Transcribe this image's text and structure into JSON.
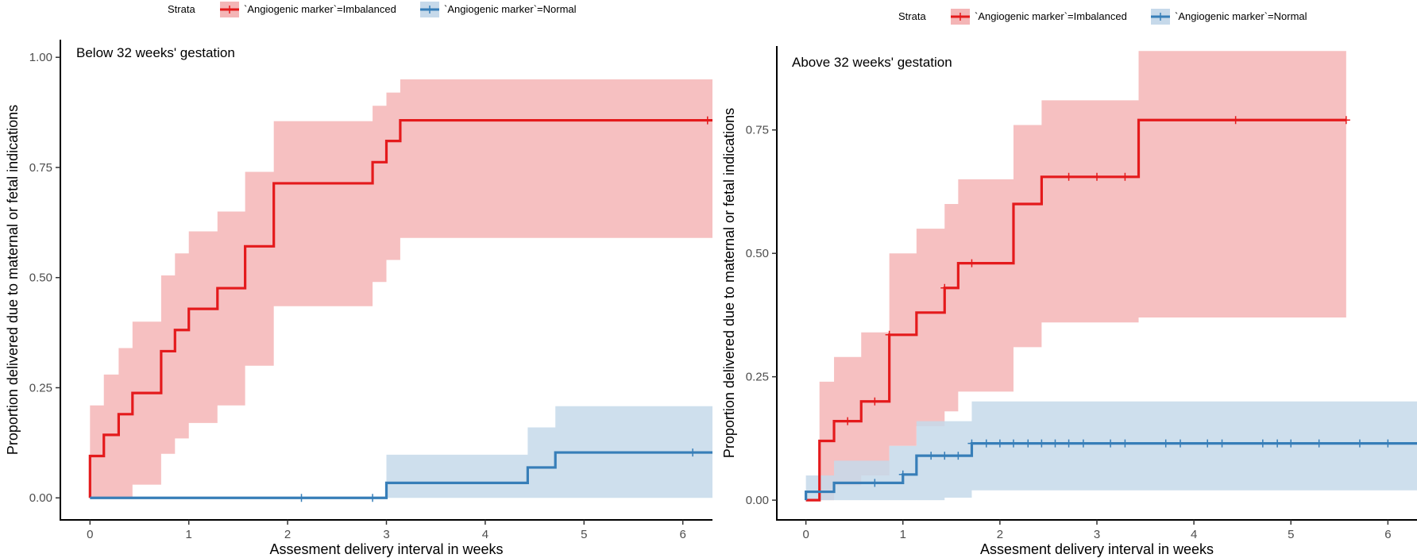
{
  "legend": {
    "title": "Strata",
    "entries": [
      "`Angiogenic marker`=Imbalanced",
      "`Angiogenic marker`=Normal"
    ]
  },
  "colors": {
    "imbalanced": "#e41a1c",
    "imbalanced_band": "#f4b5b6",
    "normal": "#377eb8",
    "normal_band": "#c6d9ea"
  },
  "chart_data": [
    {
      "type": "line",
      "title": "Below 32 weeks' gestation",
      "xlabel": "Assesment delivery interval in weeks",
      "ylabel": "Proportion delivered due to maternal or fetal indications",
      "xlim": [
        -0.3,
        6.3
      ],
      "ylim": [
        -0.05,
        1.04
      ],
      "xticks": [
        0,
        1,
        2,
        3,
        4,
        5,
        6
      ],
      "yticks": [
        0,
        0.25,
        0.5,
        0.75,
        1.0
      ],
      "ytick_labels": [
        "0.00",
        "0.25",
        "0.50",
        "0.75",
        "1.00"
      ],
      "grid": false,
      "legend_position": "top",
      "series": [
        {
          "name": "`Angiogenic marker`=Imbalanced",
          "color": "#e41a1c",
          "steps": [
            [
              0,
              0.095
            ],
            [
              0.14,
              0.143
            ],
            [
              0.29,
              0.19
            ],
            [
              0.43,
              0.238
            ],
            [
              0.72,
              0.333
            ],
            [
              0.86,
              0.381
            ],
            [
              1.0,
              0.429
            ],
            [
              1.29,
              0.476
            ],
            [
              1.57,
              0.571
            ],
            [
              1.86,
              0.714
            ],
            [
              2.86,
              0.762
            ],
            [
              3.0,
              0.81
            ],
            [
              3.14,
              0.857
            ],
            [
              6.3,
              0.857
            ]
          ],
          "ci": [
            [
              0,
              0.0,
              0.21
            ],
            [
              0.14,
              0.0,
              0.28
            ],
            [
              0.29,
              0.0,
              0.34
            ],
            [
              0.43,
              0.03,
              0.4
            ],
            [
              0.72,
              0.1,
              0.505
            ],
            [
              0.86,
              0.135,
              0.555
            ],
            [
              1.0,
              0.17,
              0.605
            ],
            [
              1.29,
              0.21,
              0.65
            ],
            [
              1.57,
              0.3,
              0.74
            ],
            [
              1.86,
              0.435,
              0.855
            ],
            [
              2.86,
              0.49,
              0.89
            ],
            [
              3.0,
              0.54,
              0.92
            ],
            [
              3.14,
              0.59,
              0.95
            ],
            [
              6.3,
              0.59,
              0.95
            ]
          ],
          "censored": [
            [
              6.25,
              0.857
            ]
          ]
        },
        {
          "name": "`Angiogenic marker`=Normal",
          "color": "#377eb8",
          "steps": [
            [
              0,
              0.0
            ],
            [
              3.0,
              0.034
            ],
            [
              4.43,
              0.069
            ],
            [
              4.71,
              0.103
            ],
            [
              6.3,
              0.103
            ]
          ],
          "ci": [
            [
              0,
              0.0,
              0.0
            ],
            [
              3.0,
              0.0,
              0.098
            ],
            [
              4.43,
              0.0,
              0.16
            ],
            [
              4.71,
              0.0,
              0.208
            ],
            [
              6.3,
              0.0,
              0.208
            ]
          ],
          "censored": [
            [
              2.14,
              0.0
            ],
            [
              2.86,
              0.0
            ],
            [
              6.1,
              0.103
            ]
          ]
        }
      ]
    },
    {
      "type": "line",
      "title": "Above 32 weeks' gestation",
      "xlabel": "Assesment delivery interval in weeks",
      "ylabel": "Proportion delivered due to maternal or fetal indications",
      "xlim": [
        -0.3,
        6.3
      ],
      "ylim": [
        -0.04,
        0.92
      ],
      "xticks": [
        0,
        1,
        2,
        3,
        4,
        5,
        6
      ],
      "yticks": [
        0,
        0.25,
        0.5,
        0.75
      ],
      "ytick_labels": [
        "0.00",
        "0.25",
        "0.50",
        "0.75"
      ],
      "grid": false,
      "legend_position": "top",
      "series": [
        {
          "name": "`Angiogenic marker`=Imbalanced",
          "color": "#e41a1c",
          "steps": [
            [
              0,
              0.0
            ],
            [
              0.14,
              0.12
            ],
            [
              0.29,
              0.16
            ],
            [
              0.57,
              0.2
            ],
            [
              0.86,
              0.335
            ],
            [
              1.0,
              0.335
            ],
            [
              1.14,
              0.38
            ],
            [
              1.43,
              0.43
            ],
            [
              1.57,
              0.48
            ],
            [
              2.14,
              0.6
            ],
            [
              2.43,
              0.655
            ],
            [
              3.43,
              0.77
            ],
            [
              5.57,
              0.77
            ]
          ],
          "ci": [
            [
              0,
              0.0,
              0.0
            ],
            [
              0.14,
              0.0,
              0.24
            ],
            [
              0.29,
              0.03,
              0.29
            ],
            [
              0.57,
              0.05,
              0.34
            ],
            [
              0.86,
              0.11,
              0.5
            ],
            [
              1.14,
              0.15,
              0.55
            ],
            [
              1.43,
              0.18,
              0.6
            ],
            [
              1.57,
              0.22,
              0.65
            ],
            [
              2.14,
              0.31,
              0.76
            ],
            [
              2.43,
              0.36,
              0.81
            ],
            [
              3.43,
              0.37,
              0.91
            ],
            [
              5.57,
              0.37,
              0.91
            ]
          ],
          "censored": [
            [
              0.43,
              0.16
            ],
            [
              0.71,
              0.2
            ],
            [
              0.86,
              0.335
            ],
            [
              1.43,
              0.43
            ],
            [
              1.71,
              0.48
            ],
            [
              2.71,
              0.655
            ],
            [
              3.0,
              0.655
            ],
            [
              3.29,
              0.655
            ],
            [
              4.43,
              0.77
            ],
            [
              5.57,
              0.77
            ]
          ]
        },
        {
          "name": "`Angiogenic marker`=Normal",
          "color": "#377eb8",
          "steps": [
            [
              0,
              0.017
            ],
            [
              0.29,
              0.035
            ],
            [
              0.86,
              0.035
            ],
            [
              1.0,
              0.052
            ],
            [
              1.14,
              0.09
            ],
            [
              1.71,
              0.115
            ],
            [
              6.3,
              0.115
            ]
          ],
          "ci": [
            [
              0,
              0.0,
              0.05
            ],
            [
              0.29,
              0.0,
              0.08
            ],
            [
              0.57,
              0.0,
              0.08
            ],
            [
              0.86,
              0.0,
              0.11
            ],
            [
              1.14,
              0.0,
              0.16
            ],
            [
              1.43,
              0.005,
              0.16
            ],
            [
              1.71,
              0.02,
              0.2
            ],
            [
              6.3,
              0.02,
              0.2
            ]
          ],
          "censored": [
            [
              0.71,
              0.035
            ],
            [
              1.0,
              0.052
            ],
            [
              1.29,
              0.09
            ],
            [
              1.43,
              0.09
            ],
            [
              1.57,
              0.09
            ],
            [
              1.71,
              0.115
            ],
            [
              1.86,
              0.115
            ],
            [
              2.0,
              0.115
            ],
            [
              2.14,
              0.115
            ],
            [
              2.29,
              0.115
            ],
            [
              2.43,
              0.115
            ],
            [
              2.57,
              0.115
            ],
            [
              2.71,
              0.115
            ],
            [
              2.86,
              0.115
            ],
            [
              3.14,
              0.115
            ],
            [
              3.29,
              0.115
            ],
            [
              3.71,
              0.115
            ],
            [
              3.86,
              0.115
            ],
            [
              4.14,
              0.115
            ],
            [
              4.29,
              0.115
            ],
            [
              4.71,
              0.115
            ],
            [
              4.86,
              0.115
            ],
            [
              5.0,
              0.115
            ],
            [
              5.29,
              0.115
            ],
            [
              5.71,
              0.115
            ],
            [
              6.0,
              0.115
            ]
          ]
        }
      ]
    }
  ]
}
